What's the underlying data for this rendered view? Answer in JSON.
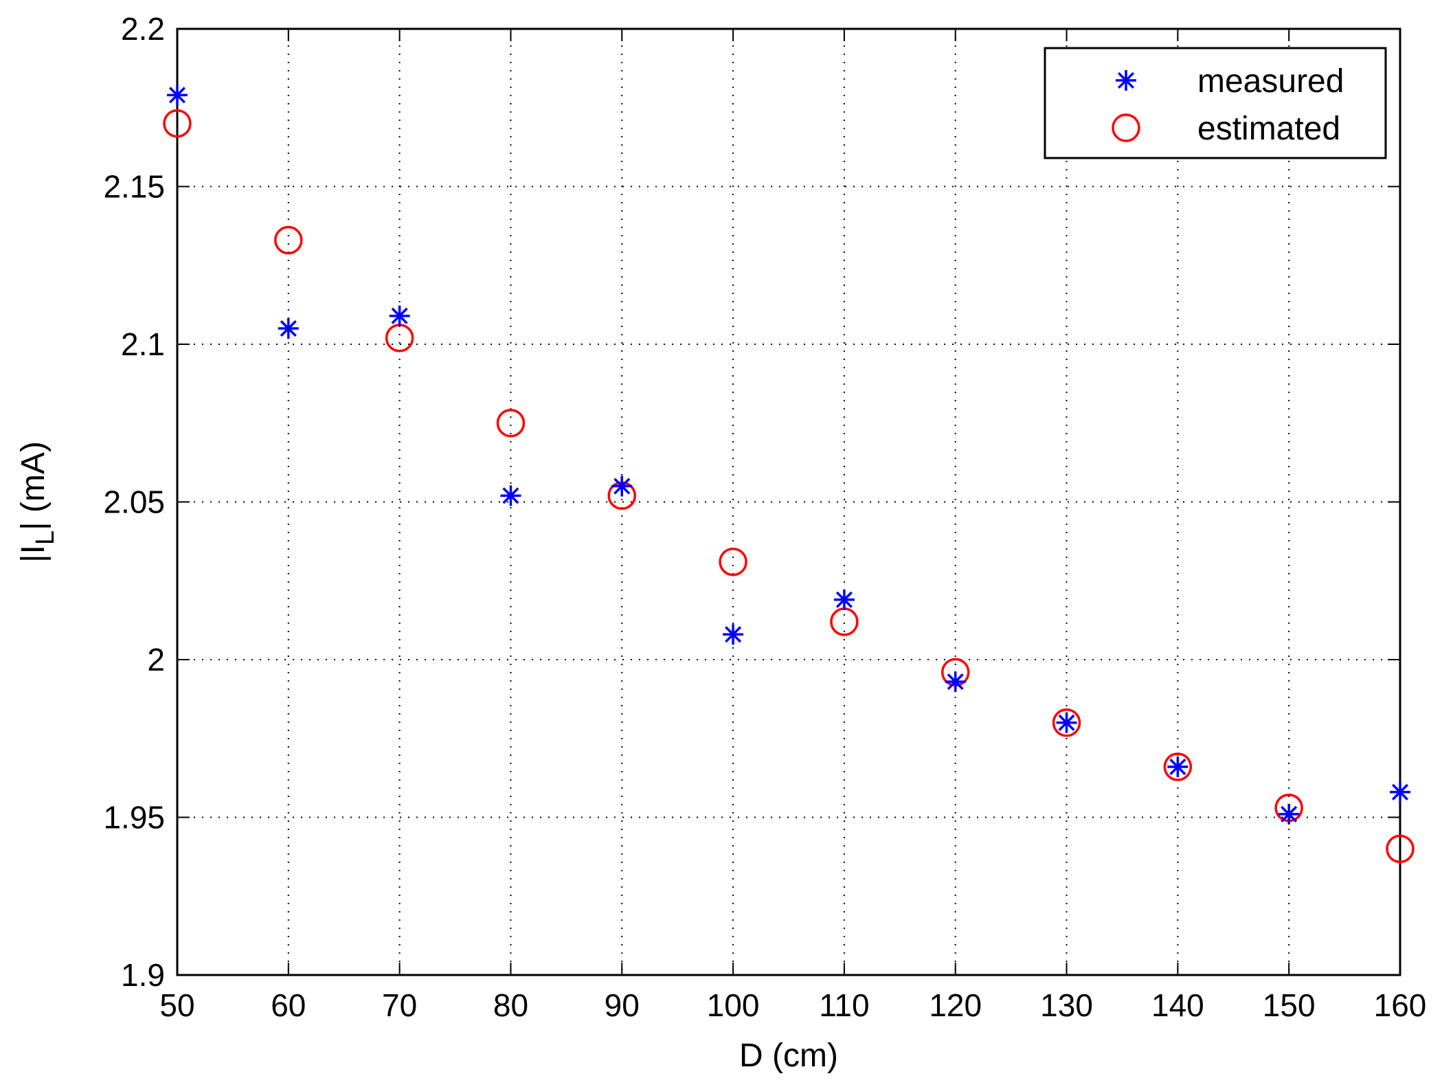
{
  "chart_data": {
    "type": "scatter",
    "xlabel": "D (cm)",
    "ylabel_main": "|I",
    "ylabel_sub": "L",
    "ylabel_rest": "| (mA)",
    "xlim": [
      50,
      160
    ],
    "ylim": [
      1.9,
      2.2
    ],
    "xticks": [
      50,
      60,
      70,
      80,
      90,
      100,
      110,
      120,
      130,
      140,
      150,
      160
    ],
    "yticks": [
      1.9,
      1.95,
      2,
      2.05,
      2.1,
      2.15,
      2.2
    ],
    "ytick_labels": [
      "1.9",
      "1.95",
      "2",
      "2.05",
      "2.1",
      "2.15",
      "2.2"
    ],
    "grid": true,
    "legend_position": "top-right",
    "series": [
      {
        "name": "measured",
        "marker": "asterisk",
        "color": "#0000ff",
        "x": [
          50,
          60,
          70,
          80,
          90,
          100,
          110,
          120,
          130,
          140,
          150,
          160
        ],
        "y": [
          2.179,
          2.105,
          2.109,
          2.052,
          2.055,
          2.008,
          2.019,
          1.993,
          1.98,
          1.966,
          1.951,
          1.958
        ]
      },
      {
        "name": "estimated",
        "marker": "circle",
        "color": "#ff0000",
        "x": [
          50,
          60,
          70,
          80,
          90,
          100,
          110,
          120,
          130,
          140,
          150,
          160
        ],
        "y": [
          2.17,
          2.133,
          2.102,
          2.075,
          2.052,
          2.031,
          2.012,
          1.996,
          1.98,
          1.966,
          1.953,
          1.94
        ]
      }
    ]
  }
}
